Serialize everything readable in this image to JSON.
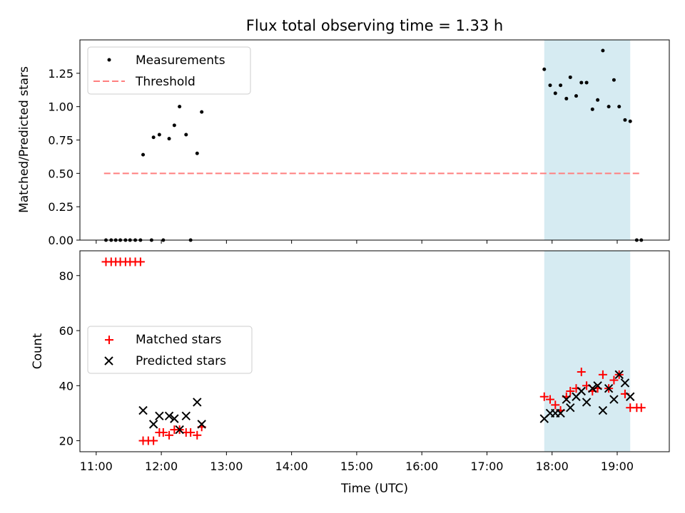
{
  "chart_data": [
    {
      "type": "scatter",
      "title": "Flux total observing time = 1.33 h",
      "xlabel": "",
      "ylabel": "Matched/Predicted stars",
      "x_unit": "hours UTC",
      "xlim": [
        10.75,
        19.8
      ],
      "ylim": [
        0,
        1.5
      ],
      "yticks": [
        0.0,
        0.25,
        0.5,
        0.75,
        1.0,
        1.25
      ],
      "ytick_labels": [
        "0.00",
        "0.25",
        "0.50",
        "0.75",
        "1.00",
        "1.25"
      ],
      "shaded_span": [
        17.88,
        19.2
      ],
      "legend_position": "upper-left",
      "series": [
        {
          "name": "Measurements",
          "marker": "dot",
          "color": "#000000",
          "points": [
            [
              11.15,
              0
            ],
            [
              11.23,
              0
            ],
            [
              11.3,
              0
            ],
            [
              11.37,
              0
            ],
            [
              11.45,
              0
            ],
            [
              11.52,
              0
            ],
            [
              11.6,
              0
            ],
            [
              11.68,
              0
            ],
            [
              11.72,
              0.64
            ],
            [
              11.85,
              0
            ],
            [
              11.88,
              0.77
            ],
            [
              11.97,
              0.79
            ],
            [
              12.03,
              0
            ],
            [
              12.12,
              0.76
            ],
            [
              12.2,
              0.86
            ],
            [
              12.28,
              1.0
            ],
            [
              12.38,
              0.79
            ],
            [
              12.45,
              0
            ],
            [
              12.55,
              0.65
            ],
            [
              12.62,
              0.96
            ],
            [
              17.88,
              1.28
            ],
            [
              17.97,
              1.16
            ],
            [
              18.05,
              1.1
            ],
            [
              18.13,
              1.16
            ],
            [
              18.22,
              1.06
            ],
            [
              18.28,
              1.22
            ],
            [
              18.37,
              1.08
            ],
            [
              18.45,
              1.18
            ],
            [
              18.53,
              1.18
            ],
            [
              18.62,
              0.98
            ],
            [
              18.7,
              1.05
            ],
            [
              18.78,
              1.42
            ],
            [
              18.87,
              1.0
            ],
            [
              18.95,
              1.2
            ],
            [
              19.03,
              1.0
            ],
            [
              19.12,
              0.9
            ],
            [
              19.2,
              0.89
            ],
            [
              19.3,
              0
            ],
            [
              19.37,
              0
            ]
          ]
        },
        {
          "name": "Threshold",
          "marker": "dashed-line",
          "color": "#ff7f7f",
          "x": [
            11.12,
            19.35
          ],
          "y": [
            0.5,
            0.5
          ]
        }
      ]
    },
    {
      "type": "scatter",
      "xlabel": "Time (UTC)",
      "ylabel": "Count",
      "x_unit": "hours UTC",
      "xlim": [
        10.75,
        19.8
      ],
      "ylim": [
        16,
        89
      ],
      "xticks": [
        11,
        12,
        13,
        14,
        15,
        16,
        17,
        18,
        19
      ],
      "xtick_labels": [
        "11:00",
        "12:00",
        "13:00",
        "14:00",
        "15:00",
        "16:00",
        "17:00",
        "18:00",
        "19:00"
      ],
      "yticks": [
        20,
        40,
        60,
        80
      ],
      "ytick_labels": [
        "20",
        "40",
        "60",
        "80"
      ],
      "shaded_span": [
        17.88,
        19.2
      ],
      "legend_position": "center-left",
      "series": [
        {
          "name": "Matched stars",
          "marker": "plus",
          "color": "#ff0000",
          "points": [
            [
              11.15,
              85
            ],
            [
              11.23,
              85
            ],
            [
              11.3,
              85
            ],
            [
              11.37,
              85
            ],
            [
              11.45,
              85
            ],
            [
              11.52,
              85
            ],
            [
              11.6,
              85
            ],
            [
              11.68,
              85
            ],
            [
              11.72,
              20
            ],
            [
              11.8,
              20
            ],
            [
              11.88,
              20
            ],
            [
              11.97,
              23
            ],
            [
              12.03,
              23
            ],
            [
              12.12,
              22
            ],
            [
              12.2,
              24
            ],
            [
              12.28,
              24
            ],
            [
              12.38,
              23
            ],
            [
              12.45,
              23
            ],
            [
              12.55,
              22
            ],
            [
              12.62,
              25
            ],
            [
              17.88,
              36
            ],
            [
              17.97,
              35
            ],
            [
              18.05,
              33
            ],
            [
              18.13,
              31
            ],
            [
              18.22,
              36
            ],
            [
              18.28,
              38
            ],
            [
              18.37,
              39
            ],
            [
              18.45,
              45
            ],
            [
              18.53,
              40
            ],
            [
              18.62,
              38
            ],
            [
              18.7,
              39
            ],
            [
              18.78,
              44
            ],
            [
              18.87,
              39
            ],
            [
              18.95,
              42
            ],
            [
              19.03,
              44
            ],
            [
              19.12,
              37
            ],
            [
              19.2,
              32
            ],
            [
              19.3,
              32
            ],
            [
              19.37,
              32
            ]
          ]
        },
        {
          "name": "Predicted stars",
          "marker": "x",
          "color": "#000000",
          "points": [
            [
              11.72,
              31
            ],
            [
              11.88,
              26
            ],
            [
              11.97,
              29
            ],
            [
              12.12,
              29
            ],
            [
              12.2,
              28
            ],
            [
              12.28,
              24
            ],
            [
              12.38,
              29
            ],
            [
              12.55,
              34
            ],
            [
              12.62,
              26
            ],
            [
              17.88,
              28
            ],
            [
              17.97,
              30
            ],
            [
              18.05,
              30
            ],
            [
              18.13,
              30
            ],
            [
              18.22,
              35
            ],
            [
              18.28,
              32
            ],
            [
              18.37,
              36
            ],
            [
              18.45,
              38
            ],
            [
              18.53,
              34
            ],
            [
              18.62,
              39
            ],
            [
              18.7,
              40
            ],
            [
              18.78,
              31
            ],
            [
              18.87,
              39
            ],
            [
              18.95,
              35
            ],
            [
              19.03,
              44
            ],
            [
              19.12,
              41
            ],
            [
              19.2,
              36
            ]
          ]
        }
      ]
    }
  ]
}
